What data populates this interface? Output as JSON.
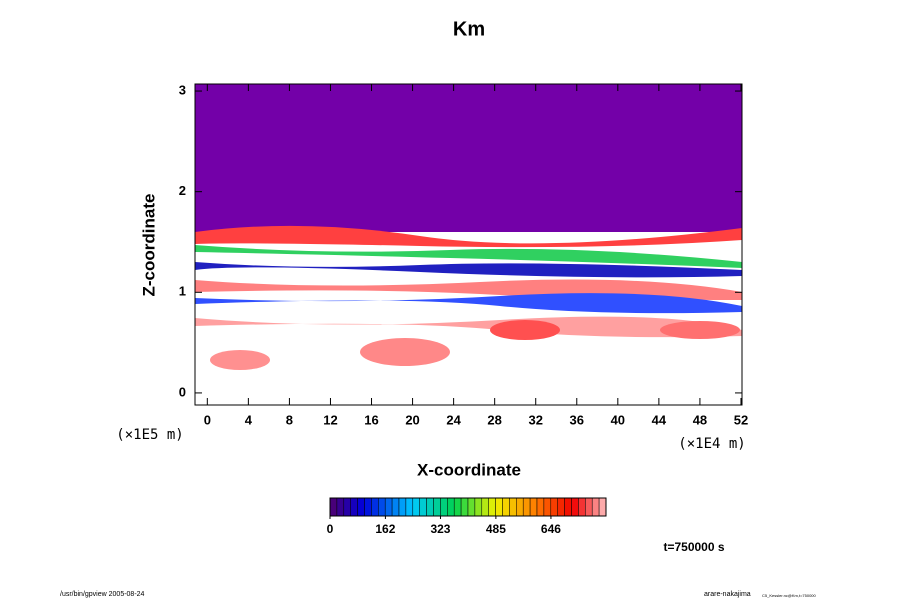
{
  "chart_data": {
    "type": "contour",
    "title": "Km",
    "xlabel": "X-coordinate",
    "ylabel": "Z-coordinate",
    "x_unit": "(×1E4 m)",
    "y_unit": "(×1E5 m)",
    "xlim": [
      -1.2,
      52.1
    ],
    "xticks": [
      0,
      4,
      8,
      12,
      16,
      20,
      24,
      28,
      32,
      36,
      40,
      44,
      48,
      52
    ],
    "ylim": [
      -0.12,
      3.07
    ],
    "yticks": [
      0,
      1,
      2,
      3
    ],
    "colorbar": {
      "lim": [
        0,
        807
      ],
      "ticks": [
        0,
        162,
        323,
        485,
        646
      ]
    },
    "time_label": "t=750000 s",
    "footer_left": "/usr/bin/gpview 2005-08-24",
    "footer_right": "arare-nakajima",
    "footer_right_small": "C5_Kessler.nc@Km,t=750000"
  }
}
